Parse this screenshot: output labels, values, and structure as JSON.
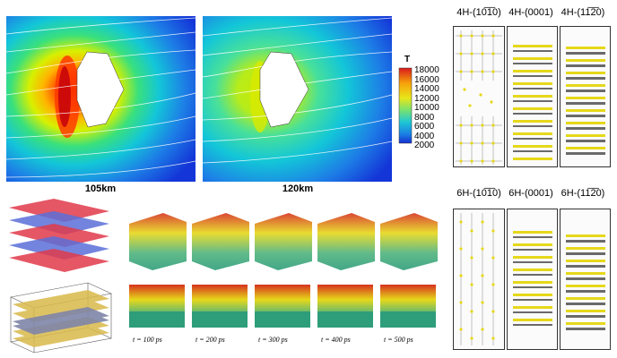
{
  "cfd": {
    "panels": [
      {
        "label": "105km"
      },
      {
        "label": "120km"
      }
    ],
    "colorbar": {
      "title": "T",
      "ticks": [
        "18000",
        "16000",
        "14000",
        "12000",
        "10000",
        "8000",
        "6000",
        "4000",
        "2000"
      ]
    }
  },
  "md_grid": {
    "rows": [
      {
        "titles": [
          "4H-(10̅1̅0)",
          "4H-(0001)",
          "4H-(11̅2̅0)"
        ]
      },
      {
        "titles": [
          "6H-(10̅1̅0)",
          "6H-(0001)",
          "6H-(11̅2̅0)"
        ]
      }
    ]
  },
  "sequence": {
    "times": [
      "t = 100 ps",
      "t = 200 ps",
      "t = 300 ps",
      "t = 400 ps",
      "t = 500 ps"
    ]
  },
  "colors": {
    "silicon": "#e6d81a",
    "carbon": "#6a6a6a",
    "oxygen": "#d6321e",
    "substrate": "#2e9d7a"
  }
}
